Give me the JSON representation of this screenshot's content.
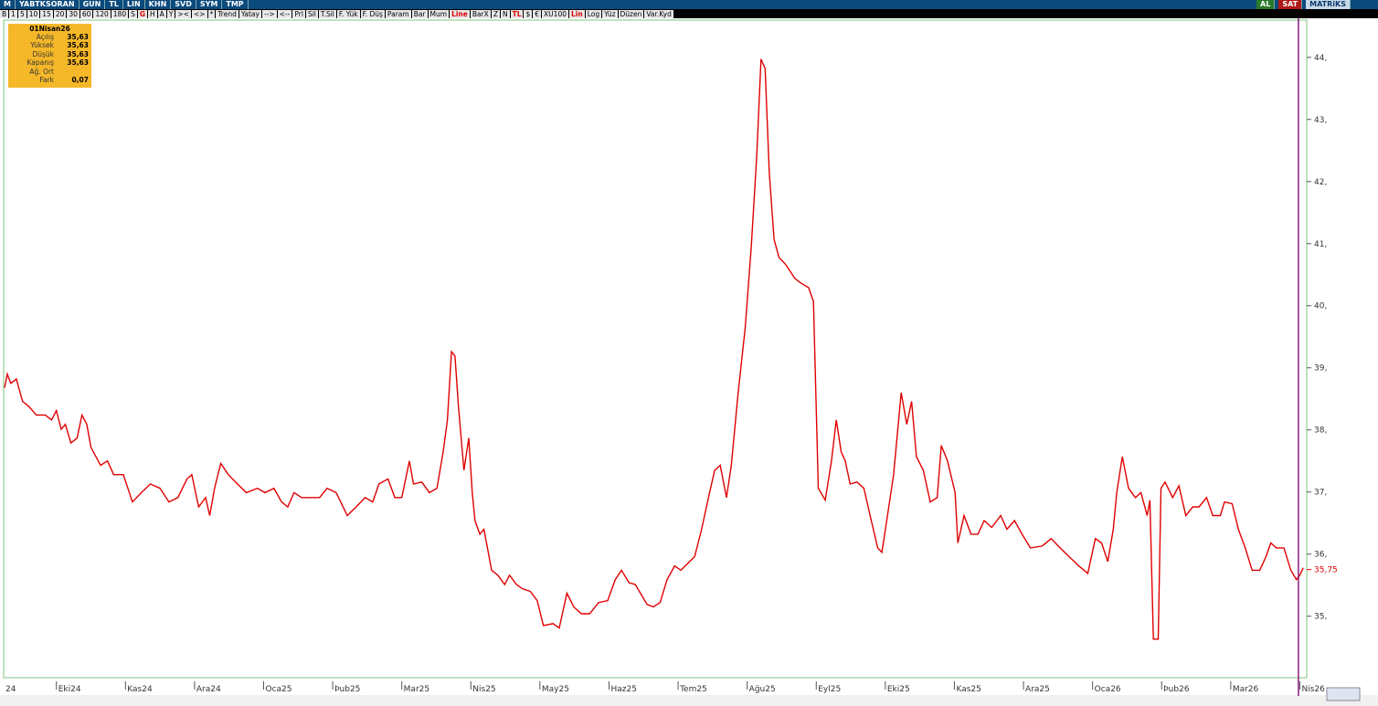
{
  "toolbar": {
    "row1": [
      "M",
      "YABTKSORAN",
      "GUN",
      "TL",
      "LIN",
      "KHN",
      "SVD",
      "SYM",
      "TMP"
    ],
    "right": [
      "AL",
      "SAT",
      "MATRiKS"
    ],
    "row2": [
      {
        "label": "B"
      },
      {
        "label": "1"
      },
      {
        "label": "5"
      },
      {
        "label": "10"
      },
      {
        "label": "15"
      },
      {
        "label": "20"
      },
      {
        "label": "30"
      },
      {
        "label": "60"
      },
      {
        "label": "120"
      },
      {
        "label": "180"
      },
      {
        "label": "S"
      },
      {
        "label": "G",
        "active": true
      },
      {
        "label": "H"
      },
      {
        "label": "A"
      },
      {
        "label": "Y"
      },
      {
        "label": "><"
      },
      {
        "label": "<>"
      },
      {
        "label": "*"
      },
      {
        "label": "Trend"
      },
      {
        "label": "Yatay"
      },
      {
        "label": "-->"
      },
      {
        "label": "<--"
      },
      {
        "label": "Prl"
      },
      {
        "label": "Sil"
      },
      {
        "label": "T.Sil"
      },
      {
        "label": "F. Yük"
      },
      {
        "label": "F. Düş"
      },
      {
        "label": "Param"
      },
      {
        "label": "Bar"
      },
      {
        "label": "Mum"
      },
      {
        "label": "Line",
        "active": true
      },
      {
        "label": "BarX"
      },
      {
        "label": "Z"
      },
      {
        "label": "N"
      },
      {
        "label": "TL",
        "active": true
      },
      {
        "label": "$"
      },
      {
        "label": "€"
      },
      {
        "label": "XU100"
      },
      {
        "label": "Lin",
        "active": true
      },
      {
        "label": "Log"
      },
      {
        "label": "Yüz"
      },
      {
        "label": "Düzen"
      },
      {
        "label": "Var.Kyd"
      }
    ]
  },
  "info": {
    "date": "01Nisan26",
    "rows": [
      {
        "key": "Açılış",
        "value": "35,63"
      },
      {
        "key": "Yüksek",
        "value": "35,63"
      },
      {
        "key": "Düşük",
        "value": "35,63"
      },
      {
        "key": "Kapanış",
        "value": "35,63"
      },
      {
        "key": "Ağ. Ort"
      },
      {
        "key": "Fark",
        "value": "0,07"
      }
    ]
  },
  "chart_data": {
    "type": "line",
    "color": "#e00000",
    "x": [
      0.25,
      0.29,
      0.34,
      0.42,
      0.51,
      0.6,
      0.71,
      0.84,
      0.93,
      1.0,
      1.07,
      1.13,
      1.21,
      1.3,
      1.37,
      1.44,
      1.5,
      1.64,
      1.74,
      1.83,
      1.97,
      2.1,
      2.23,
      2.36,
      2.5,
      2.63,
      2.76,
      2.89,
      2.96,
      3.06,
      3.16,
      3.22,
      3.29,
      3.38,
      3.49,
      3.62,
      3.75,
      3.91,
      4.02,
      4.15,
      4.26,
      4.35,
      4.44,
      4.55,
      4.68,
      4.81,
      4.92,
      5.05,
      5.21,
      5.34,
      5.47,
      5.58,
      5.67,
      5.8,
      5.9,
      6.0,
      6.11,
      6.17,
      6.29,
      6.4,
      6.51,
      6.6,
      6.66,
      6.72,
      6.77,
      6.82,
      6.9,
      6.97,
      7.02,
      7.06,
      7.13,
      7.19,
      7.3,
      7.39,
      7.49,
      7.56,
      7.66,
      7.75,
      7.86,
      7.96,
      8.05,
      8.19,
      8.28,
      8.39,
      8.49,
      8.6,
      8.72,
      8.85,
      8.98,
      9.09,
      9.18,
      9.29,
      9.38,
      9.44,
      9.55,
      9.64,
      9.74,
      9.84,
      9.95,
      10.04,
      10.13,
      10.24,
      10.34,
      10.44,
      10.53,
      10.61,
      10.7,
      10.77,
      10.87,
      10.97,
      11.06,
      11.14,
      11.2,
      11.26,
      11.32,
      11.39,
      11.46,
      11.56,
      11.69,
      11.77,
      11.89,
      11.96,
      12.03,
      12.13,
      12.22,
      12.29,
      12.36,
      12.42,
      12.49,
      12.59,
      12.69,
      12.78,
      12.89,
      12.95,
      13.04,
      13.12,
      13.23,
      13.31,
      13.38,
      13.45,
      13.55,
      13.65,
      13.75,
      13.81,
      13.9,
      14.01,
      14.05,
      14.14,
      14.24,
      14.34,
      14.43,
      14.54,
      14.67,
      14.76,
      14.87,
      14.98,
      15.1,
      15.27,
      15.4,
      15.53,
      15.66,
      15.8,
      15.93,
      16.04,
      16.13,
      16.22,
      16.3,
      16.35,
      16.43,
      16.52,
      16.62,
      16.7,
      16.79,
      16.83,
      16.88,
      16.95,
      16.99,
      17.05,
      17.16,
      17.25,
      17.35,
      17.45,
      17.54,
      17.65,
      17.74,
      17.85,
      17.91,
      18.02,
      18.11,
      18.21,
      18.31,
      18.42,
      18.51,
      18.58,
      18.66,
      18.77,
      18.87,
      18.95,
      19.0,
      19.05
    ],
    "values": [
      38.68,
      38.9,
      38.75,
      38.82,
      38.46,
      38.38,
      38.24,
      38.24,
      38.16,
      38.31,
      38.01,
      38.09,
      37.79,
      37.87,
      38.24,
      38.09,
      37.72,
      37.43,
      37.5,
      37.28,
      37.28,
      36.84,
      36.99,
      37.13,
      37.06,
      36.84,
      36.91,
      37.21,
      37.28,
      36.76,
      36.91,
      36.62,
      37.06,
      37.46,
      37.28,
      37.13,
      36.99,
      37.06,
      36.99,
      37.06,
      36.84,
      36.76,
      36.99,
      36.91,
      36.91,
      36.91,
      37.06,
      36.99,
      36.62,
      36.76,
      36.91,
      36.84,
      37.13,
      37.21,
      36.91,
      36.91,
      37.5,
      37.13,
      37.16,
      36.99,
      37.06,
      37.65,
      38.16,
      39.26,
      39.19,
      38.38,
      37.35,
      37.87,
      36.99,
      36.54,
      36.32,
      36.4,
      35.74,
      35.66,
      35.51,
      35.66,
      35.51,
      35.44,
      35.4,
      35.25,
      34.85,
      34.88,
      34.81,
      35.37,
      35.15,
      35.04,
      35.04,
      35.22,
      35.25,
      35.59,
      35.74,
      35.54,
      35.51,
      35.4,
      35.19,
      35.15,
      35.22,
      35.59,
      35.81,
      35.74,
      35.84,
      35.96,
      36.4,
      36.91,
      37.35,
      37.43,
      36.91,
      37.43,
      38.6,
      39.63,
      40.96,
      42.43,
      43.97,
      43.82,
      42.13,
      41.07,
      40.78,
      40.66,
      40.44,
      40.37,
      40.29,
      40.07,
      37.06,
      36.87,
      37.5,
      38.16,
      37.65,
      37.5,
      37.13,
      37.16,
      37.06,
      36.62,
      36.1,
      36.03,
      36.69,
      37.28,
      38.6,
      38.09,
      38.46,
      37.57,
      37.35,
      36.84,
      36.91,
      37.75,
      37.5,
      36.99,
      36.18,
      36.62,
      36.32,
      36.32,
      36.54,
      36.43,
      36.62,
      36.4,
      36.54,
      36.32,
      36.1,
      36.13,
      36.25,
      36.1,
      35.96,
      35.81,
      35.69,
      36.25,
      36.18,
      35.88,
      36.4,
      36.99,
      37.57,
      37.06,
      36.91,
      36.99,
      36.62,
      36.87,
      34.63,
      34.63,
      37.06,
      37.16,
      36.91,
      37.1,
      36.62,
      36.76,
      36.76,
      36.91,
      36.62,
      36.62,
      36.84,
      36.81,
      36.4,
      36.1,
      35.74,
      35.74,
      35.96,
      36.18,
      36.1,
      36.1,
      35.74,
      35.59,
      35.66,
      35.78
    ],
    "last_value": {
      "value": 35.75,
      "label": "35,75"
    },
    "xlim": [
      0.25,
      19.1
    ],
    "ylim": [
      34.01,
      44.6
    ],
    "xticks": [
      {
        "value": 0,
        "label": "24"
      },
      {
        "value": 1,
        "label": "Eki24"
      },
      {
        "value": 2,
        "label": "Kas24"
      },
      {
        "value": 3,
        "label": "Ara24"
      },
      {
        "value": 4,
        "label": "Oca25"
      },
      {
        "value": 5,
        "label": "Þub25"
      },
      {
        "value": 6,
        "label": "Mar25"
      },
      {
        "value": 7,
        "label": "Nis25"
      },
      {
        "value": 8,
        "label": "May25"
      },
      {
        "value": 9,
        "label": "Haz25"
      },
      {
        "value": 10,
        "label": "Tem25"
      },
      {
        "value": 11,
        "label": "Ağu25"
      },
      {
        "value": 12,
        "label": "Eyl25"
      },
      {
        "value": 13,
        "label": "Eki25"
      },
      {
        "value": 14,
        "label": "Kas25"
      },
      {
        "value": 15,
        "label": "Ara25"
      },
      {
        "value": 16,
        "label": "Oca26"
      },
      {
        "value": 17,
        "label": "Þub26"
      },
      {
        "value": 18,
        "label": "Mar26"
      },
      {
        "value": 19,
        "label": "Nis26"
      }
    ],
    "yticks": [
      {
        "value": 35,
        "label": "35,"
      },
      {
        "value": 36,
        "label": "36,"
      },
      {
        "value": 37,
        "label": "37,"
      },
      {
        "value": 38,
        "label": "38,"
      },
      {
        "value": 39,
        "label": "39,"
      },
      {
        "value": 40,
        "label": "40,"
      },
      {
        "value": 41,
        "label": "41,"
      },
      {
        "value": 42,
        "label": "42,"
      },
      {
        "value": 43,
        "label": "43,"
      },
      {
        "value": 44,
        "label": "44,"
      }
    ],
    "cursor_x": 18.98
  }
}
